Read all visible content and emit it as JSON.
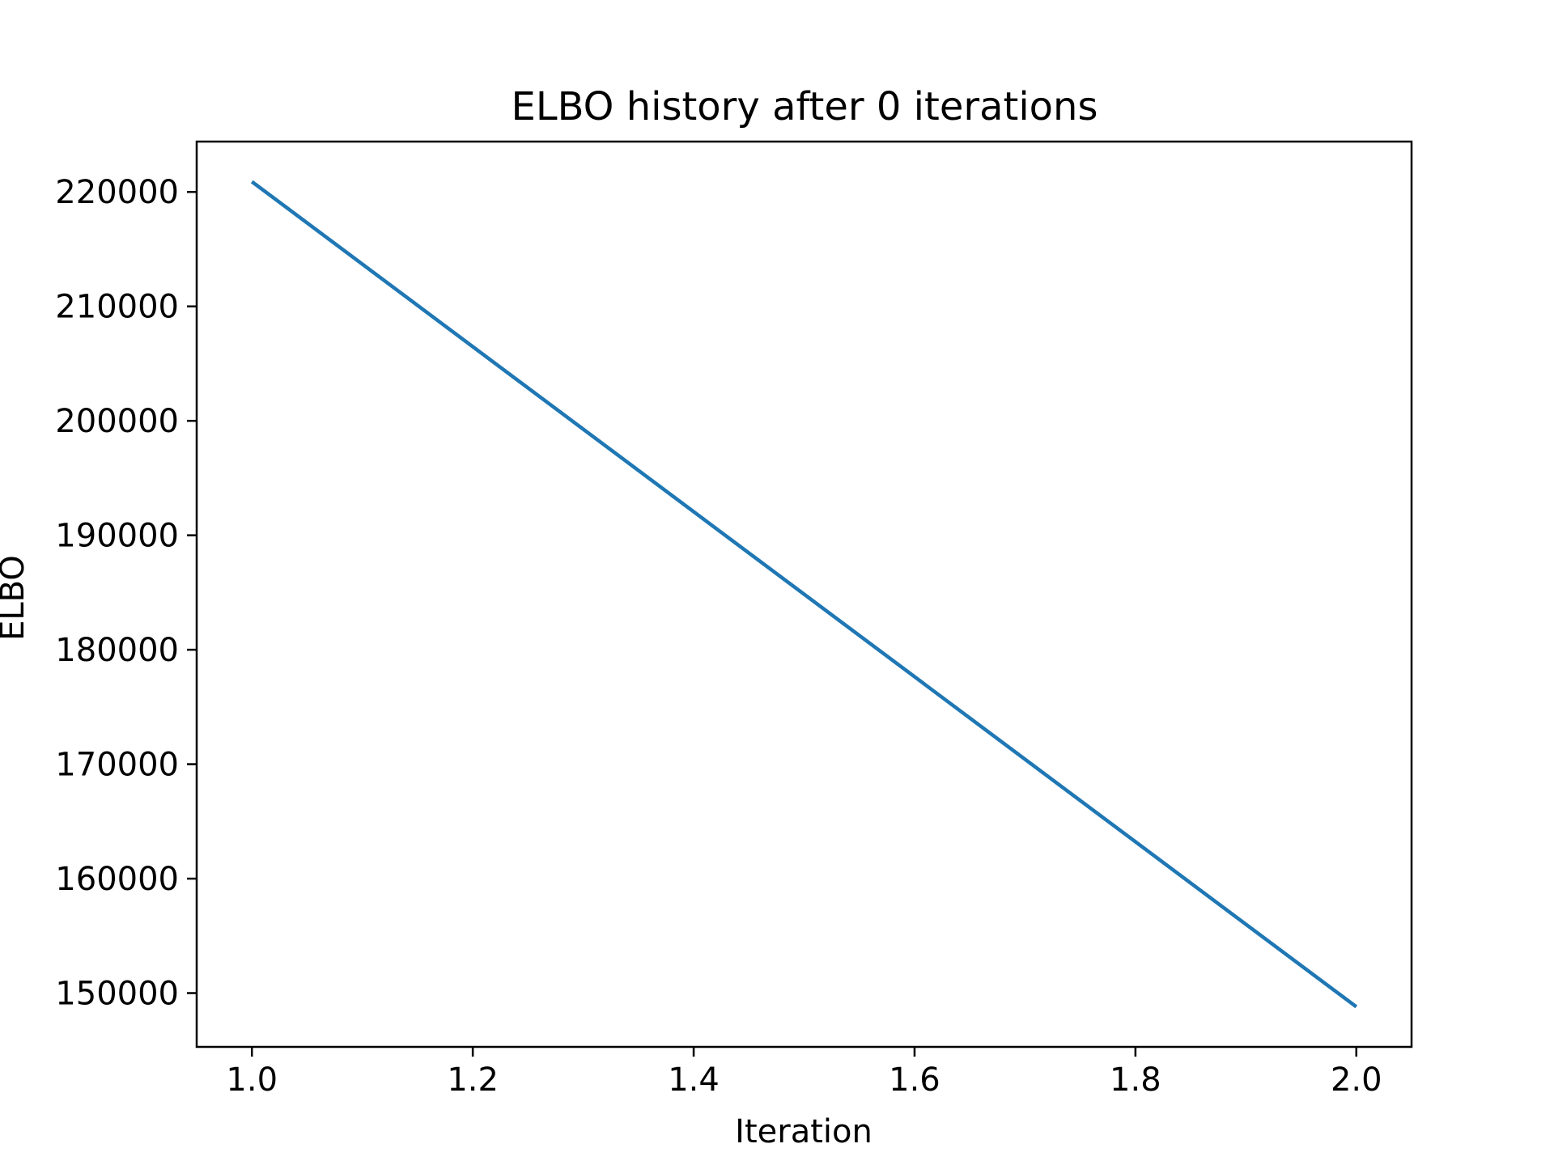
{
  "chart_data": {
    "type": "line",
    "title": "ELBO history after 0 iterations",
    "xlabel": "Iteration",
    "ylabel": "ELBO",
    "xlim": [
      0.95,
      2.05
    ],
    "ylim": [
      145300,
      224400
    ],
    "xticks": [
      1.0,
      1.2,
      1.4,
      1.6,
      1.8,
      2.0
    ],
    "xtick_labels": [
      "1.0",
      "1.2",
      "1.4",
      "1.6",
      "1.8",
      "2.0"
    ],
    "yticks": [
      150000,
      160000,
      170000,
      180000,
      190000,
      200000,
      210000,
      220000
    ],
    "ytick_labels": [
      "150000",
      "160000",
      "170000",
      "180000",
      "190000",
      "200000",
      "210000",
      "220000"
    ],
    "grid": false,
    "series": [
      {
        "x": [
          1.0,
          2.0
        ],
        "y": [
          220900,
          148800
        ],
        "color": "#1f77b4"
      }
    ]
  }
}
